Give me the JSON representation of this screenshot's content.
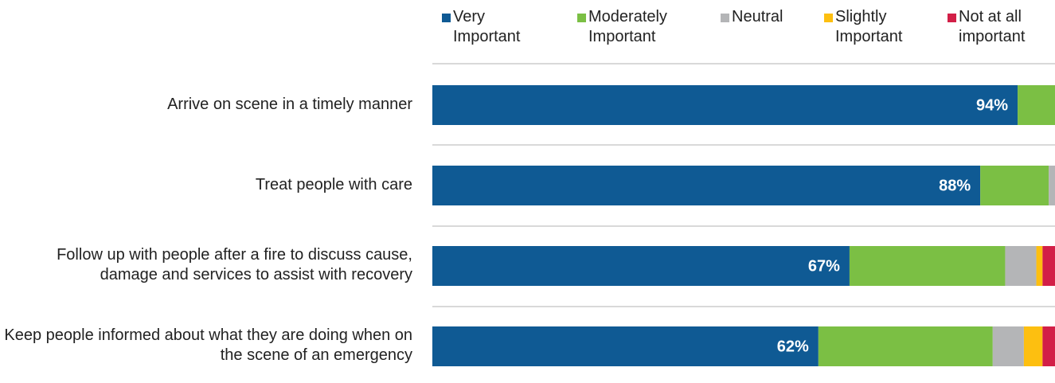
{
  "chart_data": {
    "type": "stacked-bar-horizontal",
    "categories": [
      "Arrive on scene in a timely manner",
      "Treat people with care",
      "Follow up with people after a fire to discuss cause, damage and services to assist with recovery",
      "Keep people informed about what they are doing when on the scene of an emergency"
    ],
    "series": [
      {
        "name": "Very Important",
        "color": "#0f5a94",
        "values": [
          94,
          88,
          67,
          62
        ],
        "value_labels": [
          "94%",
          "88%",
          "67%",
          "62%"
        ]
      },
      {
        "name": "Moderately Important",
        "color": "#7bbf44",
        "values": [
          6,
          11,
          25,
          28
        ]
      },
      {
        "name": "Neutral",
        "color": "#b4b5b7",
        "values": [
          0,
          1,
          5,
          5
        ]
      },
      {
        "name": "Slightly Important",
        "color": "#fdbf10",
        "values": [
          0,
          0,
          1,
          3
        ]
      },
      {
        "name": "Not at all important",
        "color": "#d21f47",
        "values": [
          0,
          0,
          2,
          2
        ]
      }
    ],
    "xlim": [
      0,
      100
    ],
    "legend": "top"
  }
}
